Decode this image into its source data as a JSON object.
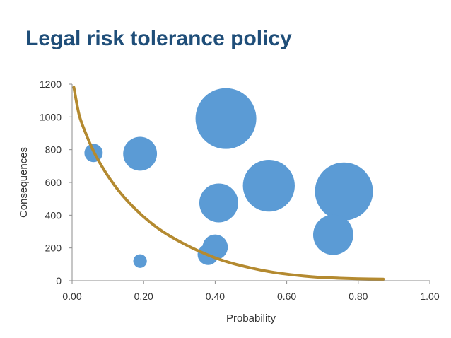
{
  "title": "Legal risk tolerance policy",
  "chart_data": {
    "type": "scatter",
    "subtype": "bubble",
    "title": "Legal risk tolerance policy",
    "xlabel": "Probability",
    "ylabel": "Consequences",
    "xlim": [
      0,
      1
    ],
    "ylim": [
      0,
      1200
    ],
    "xticks": [
      "0.00",
      "0.20",
      "0.40",
      "0.60",
      "0.80",
      "1.00"
    ],
    "yticks": [
      "0",
      "200",
      "400",
      "600",
      "800",
      "1000",
      "1200"
    ],
    "grid": false,
    "legend": "none",
    "bubble_color": "#5b9bd5",
    "curve_color": "#b48a30",
    "bubbles": [
      {
        "x": 0.06,
        "y": 780,
        "size": 1.0
      },
      {
        "x": 0.19,
        "y": 775,
        "size": 3.4
      },
      {
        "x": 0.19,
        "y": 120,
        "size": 0.55
      },
      {
        "x": 0.43,
        "y": 990,
        "size": 11.0
      },
      {
        "x": 0.55,
        "y": 580,
        "size": 8.0
      },
      {
        "x": 0.41,
        "y": 475,
        "size": 4.5
      },
      {
        "x": 0.4,
        "y": 205,
        "size": 1.9
      },
      {
        "x": 0.38,
        "y": 160,
        "size": 1.3
      },
      {
        "x": 0.76,
        "y": 545,
        "size": 10.0
      },
      {
        "x": 0.73,
        "y": 280,
        "size": 4.8
      }
    ],
    "tolerance_curve": {
      "x": [
        0.005,
        0.02,
        0.04,
        0.06,
        0.08,
        0.1,
        0.13,
        0.16,
        0.2,
        0.25,
        0.3,
        0.35,
        0.4,
        0.45,
        0.5,
        0.55,
        0.6,
        0.65,
        0.7,
        0.75,
        0.8,
        0.87
      ],
      "y": [
        1180,
        1010,
        890,
        790,
        710,
        640,
        550,
        475,
        390,
        305,
        240,
        185,
        140,
        105,
        78,
        56,
        40,
        28,
        20,
        15,
        12,
        10
      ]
    }
  }
}
